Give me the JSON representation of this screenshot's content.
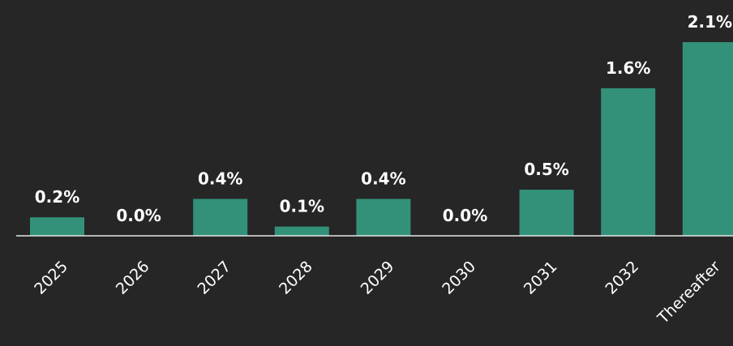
{
  "chart_data": {
    "type": "bar",
    "categories": [
      "2025",
      "2026",
      "2027",
      "2028",
      "2029",
      "2030",
      "2031",
      "2032",
      "Thereafter"
    ],
    "values": [
      0.2,
      0.0,
      0.4,
      0.1,
      0.4,
      0.0,
      0.5,
      1.6,
      2.1
    ],
    "value_labels": [
      "0.2%",
      "0.0%",
      "0.4%",
      "0.1%",
      "0.4%",
      "0.0%",
      "0.5%",
      "1.6%",
      "2.1%"
    ],
    "color": "#33917a"
  }
}
